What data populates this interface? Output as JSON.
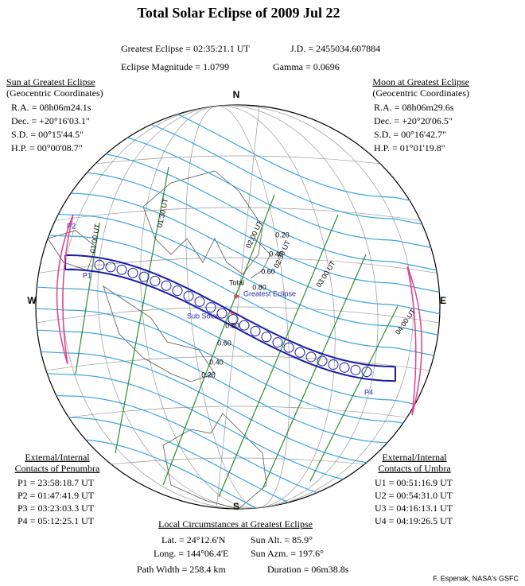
{
  "title": "Total Solar Eclipse of  2009 Jul 22",
  "header": {
    "greatest_eclipse": "Greatest Eclipse = 02:35:21.1 UT",
    "jd": "J.D. = 2455034.607884",
    "magnitude": "Eclipse Magnitude = 1.0799",
    "gamma": "Gamma = 0.0696"
  },
  "sun": {
    "title": "Sun at Greatest Eclipse",
    "subtitle": "(Geocentric Coordinates)",
    "rows": [
      "R.A. = 08h06m24.1s",
      "Dec. = +20°16'03.1\"",
      "S.D. = 00°15'44.5\"",
      "H.P. = 00°00'08.7\""
    ]
  },
  "moon": {
    "title": "Moon at Greatest Eclipse",
    "subtitle": "(Geocentric Coordinates)",
    "rows": [
      "R.A. = 08h06m29.6s",
      "Dec. = +20°20'06.5\"",
      "S.D. = 00°16'42.7\"",
      "H.P. = 01°01'19.8\""
    ]
  },
  "penumbra": {
    "title": "External/Internal",
    "subtitle": "Contacts of Penumbra",
    "rows": [
      "P1 = 23:58:18.7 UT",
      "P2 = 01:47:41.9 UT",
      "P3 = 03:23:03.3 UT",
      "P4 = 05:12:25.1 UT"
    ]
  },
  "umbra": {
    "title": "External/Internal",
    "subtitle": "Contacts of Umbra",
    "rows": [
      "U1 = 00:51:16.9 UT",
      "U2 = 00:54:31.0 UT",
      "U3 = 04:16:13.1 UT",
      "U4 = 04:19:26.5 UT"
    ]
  },
  "local": {
    "title": "Local Circumstances at Greatest Eclipse",
    "rows": [
      "Lat. = 24°12.6'N",
      "Sun Alt. = 85.9°",
      "Long. = 144°06.4'E",
      "Sun Azm. = 197.6°",
      "Path Width = 258.4 km",
      "Duration = 06m38.8s"
    ]
  },
  "credit": "F. Espenak, NASA's GSFC",
  "map": {
    "compass": [
      "N",
      "E",
      "S",
      "W"
    ],
    "magnitude_labels": [
      "0.20",
      "0.40",
      "0.60",
      "0.80",
      "0.80",
      "0.60",
      "0.40",
      "0.20"
    ],
    "path_labels": [
      "Total",
      "Greatest Eclipse",
      "Sub Solar"
    ],
    "time_labels": [
      "01:00 UT",
      "01:30 UT",
      "02:00 UT",
      "02:30 UT",
      "03:00 UT",
      "04:00 UT"
    ],
    "contacts": [
      "P1",
      "P2",
      "P4"
    ]
  }
}
